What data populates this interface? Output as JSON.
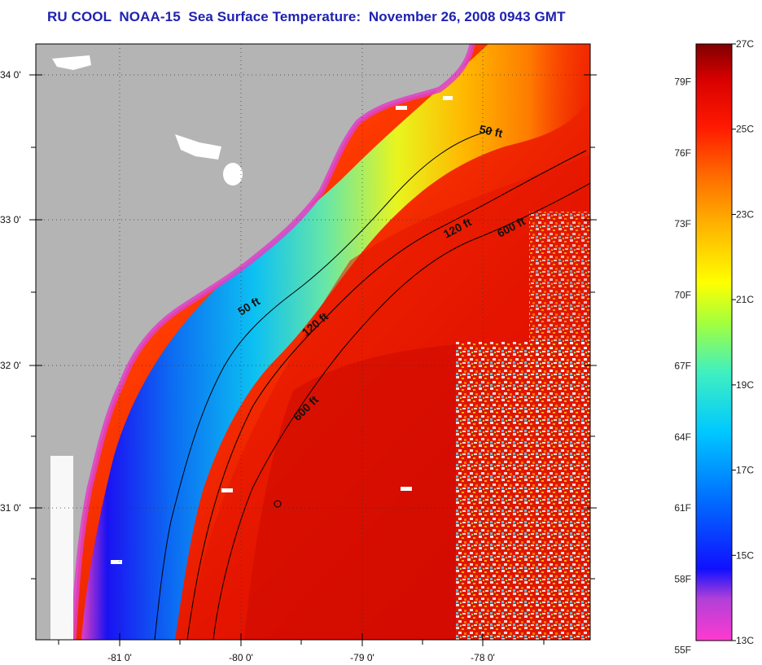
{
  "title": "RU COOL  NOAA-15  Sea Surface Temperature:  November 26, 2008 0943 GMT",
  "map": {
    "lat_labels": [
      "34 0'",
      "33 0'",
      "32 0'",
      "31 0'"
    ],
    "lon_labels": [
      "-81 0'",
      "-80 0'",
      "-79 0'",
      "-78 0'"
    ],
    "isobaths": [
      {
        "name": "50 ft",
        "labels": [
          "50 ft",
          "50 ft"
        ]
      },
      {
        "name": "120 ft",
        "labels": [
          "120 ft",
          "120 ft"
        ]
      },
      {
        "name": "600 ft",
        "labels": [
          "600 ft",
          "600 ft"
        ]
      }
    ],
    "colors": {
      "land": "#b4b4b4",
      "cloud_mask": "#ffffff",
      "contour": "#000000"
    }
  },
  "colorbar": {
    "fahrenheit_labels": [
      "79F",
      "76F",
      "73F",
      "70F",
      "67F",
      "64F",
      "61F",
      "58F",
      "55F"
    ],
    "celsius_labels": [
      "27C",
      "25C",
      "23C",
      "21C",
      "19C",
      "17C",
      "15C",
      "13C"
    ],
    "range_celsius": [
      13,
      27
    ],
    "colors": [
      "#ff3ad0",
      "#b040d8",
      "#1010ff",
      "#0070ff",
      "#00c8ff",
      "#40f0c0",
      "#a0ff40",
      "#ffff00",
      "#ffb000",
      "#ff6a00",
      "#ff1a00",
      "#d80000",
      "#800000"
    ]
  }
}
